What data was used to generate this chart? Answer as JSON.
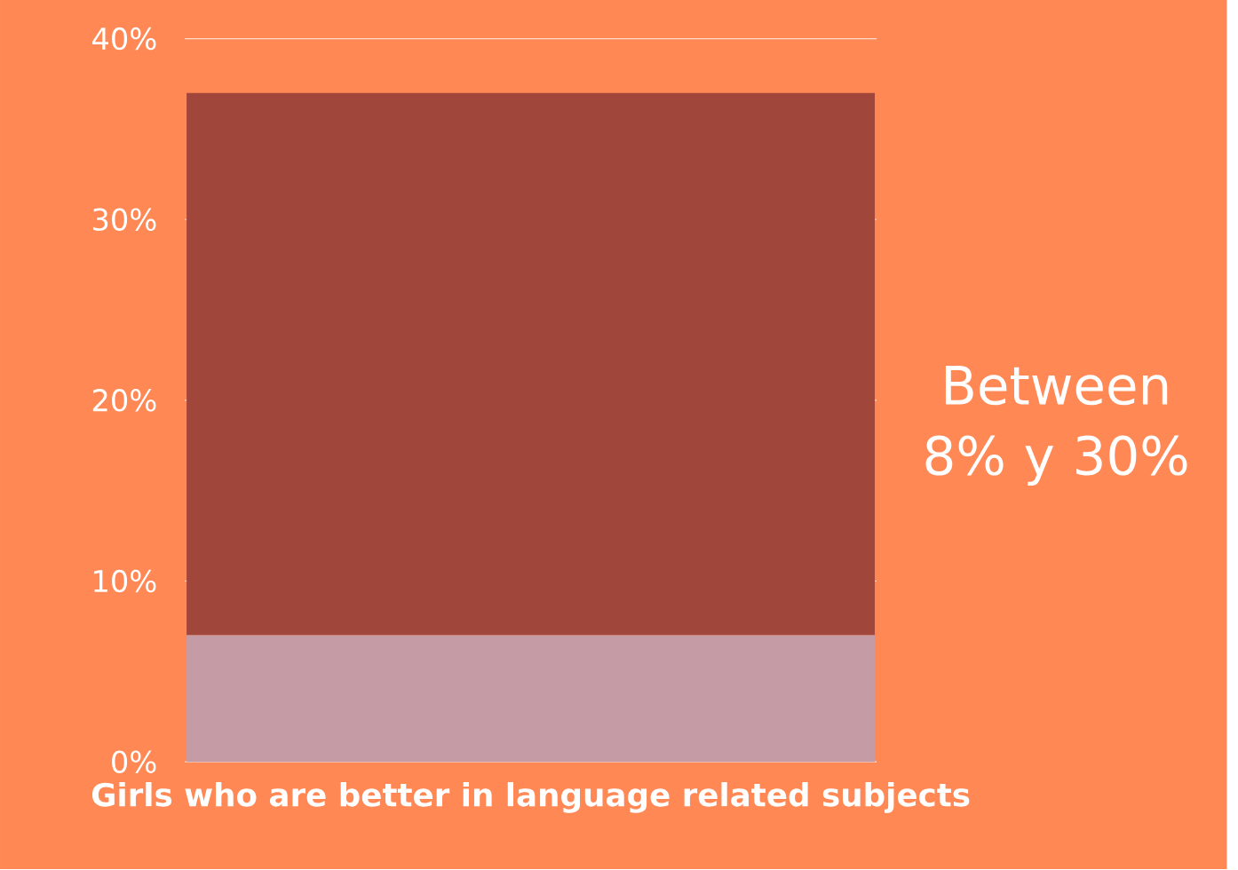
{
  "chart_data": {
    "type": "bar",
    "stacked": true,
    "categories": [
      "Girls who are better in language related subjects"
    ],
    "series": [
      {
        "color": "#c59ca6",
        "values": [
          7
        ]
      },
      {
        "color": "#a0463a",
        "values": [
          30
        ]
      }
    ],
    "ylim": [
      0,
      40
    ],
    "yticks": [
      {
        "value": 0,
        "label": "0%"
      },
      {
        "value": 10,
        "label": "10%"
      },
      {
        "value": 20,
        "label": "20%"
      },
      {
        "value": 30,
        "label": "30%"
      },
      {
        "value": 40,
        "label": "40%"
      }
    ],
    "grid": "y",
    "annotations": [
      "Between 8% y 30%"
    ]
  }
}
